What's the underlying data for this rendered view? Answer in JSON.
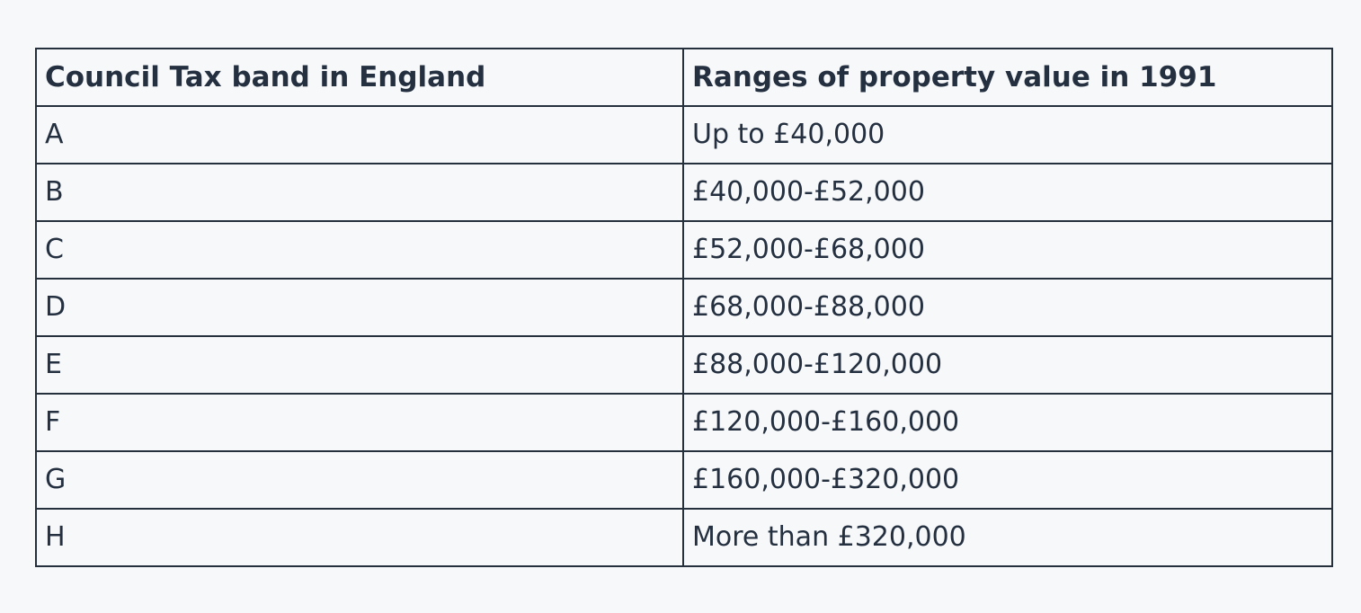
{
  "table": {
    "headers": [
      "Council Tax band in England",
      "Ranges of property value in 1991"
    ],
    "rows": [
      [
        "A",
        "Up to £40,000"
      ],
      [
        "B",
        "£40,000-£52,000"
      ],
      [
        "C",
        "£52,000-£68,000"
      ],
      [
        "D",
        "£68,000-£88,000"
      ],
      [
        "E",
        "£88,000-£120,000"
      ],
      [
        "F",
        "£120,000-£160,000"
      ],
      [
        "G",
        "£160,000-£320,000"
      ],
      [
        "H",
        "More than £320,000"
      ]
    ]
  }
}
